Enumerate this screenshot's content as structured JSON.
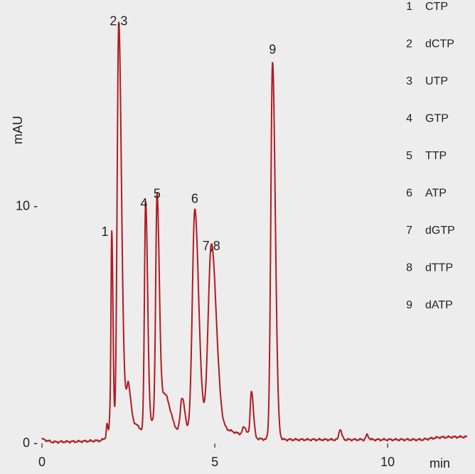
{
  "colors": {
    "background": "#ededed",
    "trace": "#b01c22",
    "text": "#222222"
  },
  "chart_data": {
    "type": "line",
    "title": "",
    "xlabel": "min",
    "ylabel": "mAU",
    "xlim": [
      0,
      12.3
    ],
    "ylim": [
      0,
      18
    ],
    "x_ticks": [
      {
        "value": 0,
        "label": "0"
      },
      {
        "value": 5,
        "label": "5"
      },
      {
        "value": 10,
        "label": "10"
      }
    ],
    "y_ticks": [
      {
        "value": 0,
        "label": "0 -"
      },
      {
        "value": 10,
        "label": "10 -"
      }
    ],
    "grid": false,
    "series": [
      {
        "color": "#b01c22",
        "baseline": [
          [
            0.0,
            0.12
          ],
          [
            0.3,
            0.0
          ],
          [
            1.0,
            0.02
          ],
          [
            1.7,
            0.06
          ],
          [
            2.4,
            0.6
          ],
          [
            2.6,
            0.9
          ],
          [
            2.9,
            0.5
          ],
          [
            3.2,
            0.9
          ],
          [
            3.6,
            0.7
          ],
          [
            3.8,
            0.5
          ],
          [
            4.0,
            0.35
          ],
          [
            4.4,
            0.5
          ],
          [
            4.7,
            0.7
          ],
          [
            5.0,
            0.6
          ],
          [
            5.4,
            0.5
          ],
          [
            5.7,
            0.35
          ],
          [
            5.9,
            0.25
          ],
          [
            6.1,
            0.15
          ],
          [
            6.4,
            0.12
          ],
          [
            7.0,
            0.1
          ],
          [
            8.0,
            0.1
          ],
          [
            9.0,
            0.1
          ],
          [
            10.0,
            0.1
          ],
          [
            11.0,
            0.1
          ],
          [
            11.5,
            0.2
          ],
          [
            12.3,
            0.22
          ]
        ],
        "peaks": [
          {
            "rt": 1.88,
            "height": 0.55,
            "width": 0.02
          },
          {
            "rt": 1.97,
            "height": 0.85,
            "width": 0.02
          },
          {
            "rt": 2.02,
            "height": 8.35,
            "width": 0.022
          },
          {
            "rt": 2.22,
            "height": 17.0,
            "width": 0.045
          },
          {
            "rt": 2.34,
            "height": 1.6,
            "width": 0.06
          },
          {
            "rt": 2.5,
            "height": 1.4,
            "width": 0.04
          },
          {
            "rt": 3.0,
            "height": 9.55,
            "width": 0.035
          },
          {
            "rt": 3.33,
            "height": 9.55,
            "width": 0.04
          },
          {
            "rt": 3.55,
            "height": 1.3,
            "width": 0.1
          },
          {
            "rt": 4.05,
            "height": 1.5,
            "width": 0.05
          },
          {
            "rt": 4.42,
            "height": 9.3,
            "width": 0.07
          },
          {
            "rt": 4.9,
            "height": 7.75,
            "width": 0.09
          },
          {
            "rt": 5.85,
            "height": 0.35,
            "width": 0.05
          },
          {
            "rt": 6.06,
            "height": 2.0,
            "width": 0.035
          },
          {
            "rt": 6.67,
            "height": 15.9,
            "width": 0.05
          },
          {
            "rt": 8.62,
            "height": 0.45,
            "width": 0.03
          },
          {
            "rt": 9.4,
            "height": 0.2,
            "width": 0.03
          }
        ]
      }
    ],
    "annotations": [
      {
        "text": "1",
        "x": 1.82,
        "y": 8.7
      },
      {
        "text": "2,3",
        "x": 2.22,
        "y": 17.6
      },
      {
        "text": "4",
        "x": 2.95,
        "y": 9.9
      },
      {
        "text": "5",
        "x": 3.33,
        "y": 10.3
      },
      {
        "text": "6",
        "x": 4.42,
        "y": 10.1
      },
      {
        "text": "7,8",
        "x": 4.9,
        "y": 8.1
      },
      {
        "text": "9",
        "x": 6.67,
        "y": 16.4
      }
    ],
    "legend": {
      "position": "right",
      "entries": [
        {
          "number": "1",
          "name": "CTP"
        },
        {
          "number": "2",
          "name": "dCTP"
        },
        {
          "number": "3",
          "name": "UTP"
        },
        {
          "number": "4",
          "name": "GTP"
        },
        {
          "number": "5",
          "name": "TTP"
        },
        {
          "number": "6",
          "name": "ATP"
        },
        {
          "number": "7",
          "name": "dGTP"
        },
        {
          "number": "8",
          "name": "dTTP"
        },
        {
          "number": "9",
          "name": "dATP"
        }
      ]
    }
  }
}
